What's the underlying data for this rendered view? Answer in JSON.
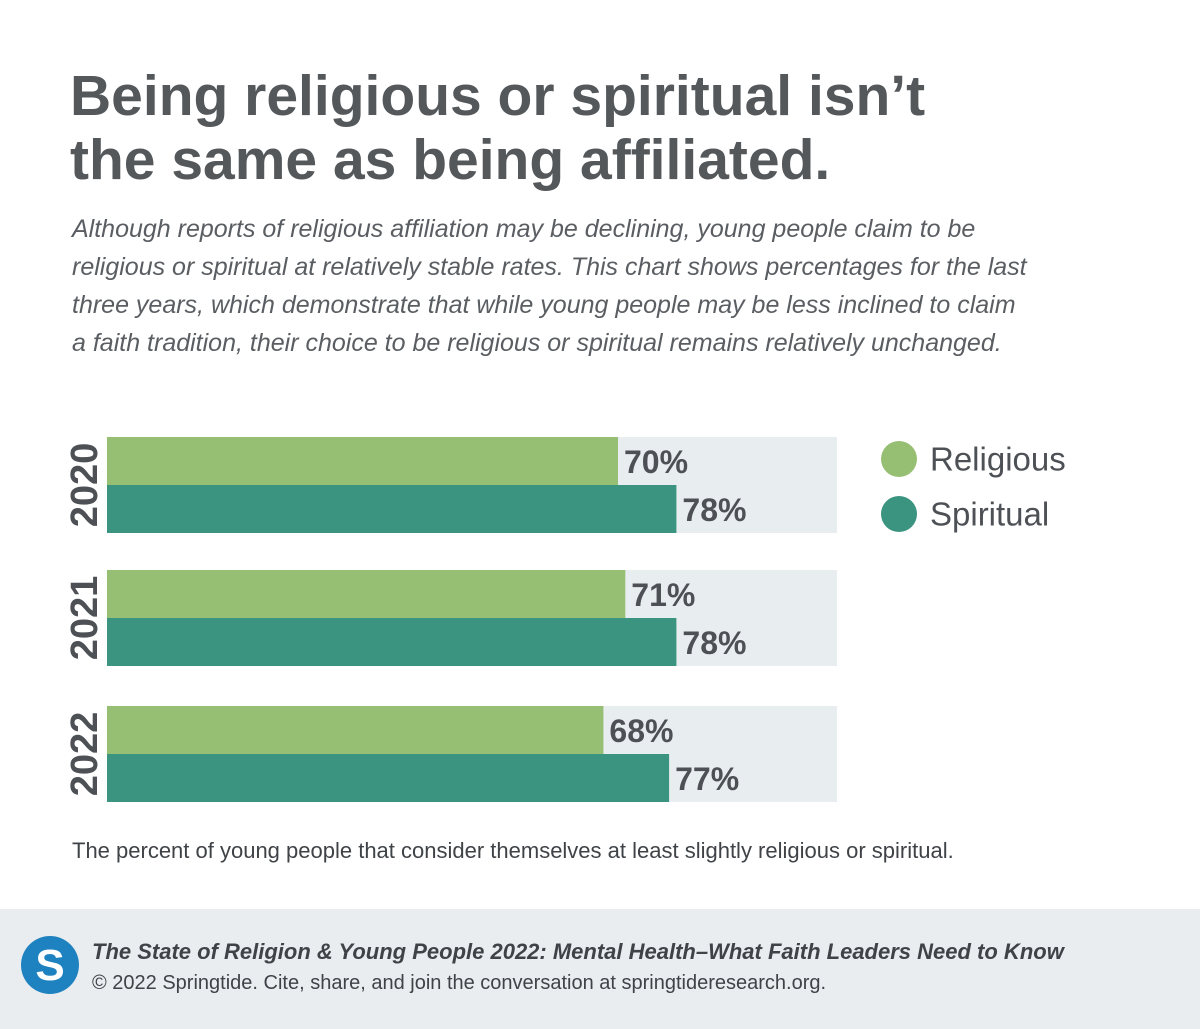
{
  "title_line1": "Being religious or spiritual isn’t",
  "title_line2": "the same as being affiliated.",
  "subtitle": "Although reports of religious affiliation may be declining, young people claim to be religious or spiritual at relatively stable rates. This chart shows percentages for the last three years, which demonstrate that while young people may be less inclined to claim a faith tradition, their choice to be religious or spiritual remains relatively unchanged.",
  "caption": "The percent of young people that consider themselves at least slightly religious or spiritual.",
  "footer": {
    "title": "The State of Religion & Young People 2022: Mental Health–What Faith Leaders Need to Know",
    "copyright": "© 2022 Springtide. Cite, share, and join the conversation at springtideresearch.org.",
    "logo_letter": "S"
  },
  "colors": {
    "religious": "#97bf73",
    "spiritual": "#3a9480",
    "track": "#e8edf0",
    "logo": "#1f82c0"
  },
  "chart_data": {
    "type": "bar",
    "orientation": "horizontal",
    "categories": [
      "2020",
      "2021",
      "2022"
    ],
    "series": [
      {
        "name": "Religious",
        "values": [
          70,
          71,
          68
        ],
        "labels": [
          "70%",
          "71%",
          "68%"
        ]
      },
      {
        "name": "Spiritual",
        "values": [
          78,
          78,
          77
        ],
        "labels": [
          "78%",
          "78%",
          "77%"
        ]
      }
    ],
    "xlim": [
      0,
      100
    ],
    "legend": "right",
    "grid": false
  }
}
